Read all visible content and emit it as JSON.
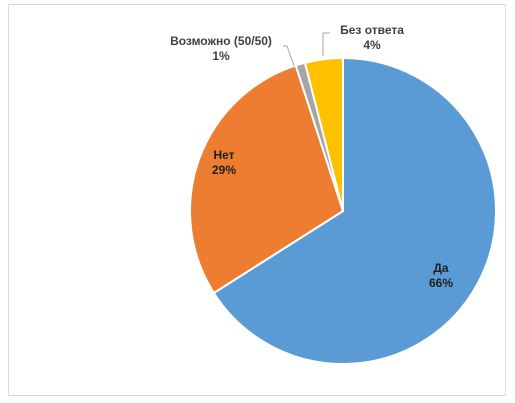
{
  "chart_data": {
    "type": "pie",
    "slices": [
      {
        "label": "Да",
        "value": 66,
        "value_text": "66%",
        "color": "#5B9BD5",
        "label_color": "#1f1f1f"
      },
      {
        "label": "Нет",
        "value": 29,
        "value_text": "29%",
        "color": "#ED7D31",
        "label_color": "#1f1f1f"
      },
      {
        "label": "Возможно (50/50)",
        "value": 1,
        "value_text": "1%",
        "color": "#A5A5A5",
        "label_color": "#404040"
      },
      {
        "label": "Без ответа",
        "value": 4,
        "value_text": "4%",
        "color": "#FFC000",
        "label_color": "#404040"
      }
    ],
    "start": "top",
    "direction": "clockwise",
    "legend": "none"
  }
}
